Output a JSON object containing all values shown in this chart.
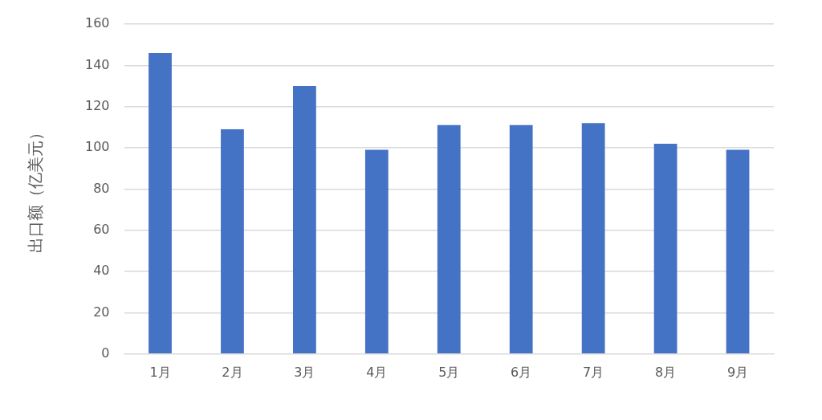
{
  "chart_data": {
    "type": "bar",
    "ylabel": "出口额（亿美元）",
    "categories": [
      "1月",
      "2月",
      "3月",
      "4月",
      "5月",
      "6月",
      "7月",
      "8月",
      "9月"
    ],
    "values": [
      146,
      109,
      130,
      99,
      111,
      111,
      112,
      102,
      99
    ],
    "color": "#4472c4",
    "ylim": [
      0,
      160
    ],
    "yticks": [
      0,
      20,
      40,
      60,
      80,
      100,
      120,
      140,
      160
    ],
    "grid": "y",
    "legend": false
  }
}
